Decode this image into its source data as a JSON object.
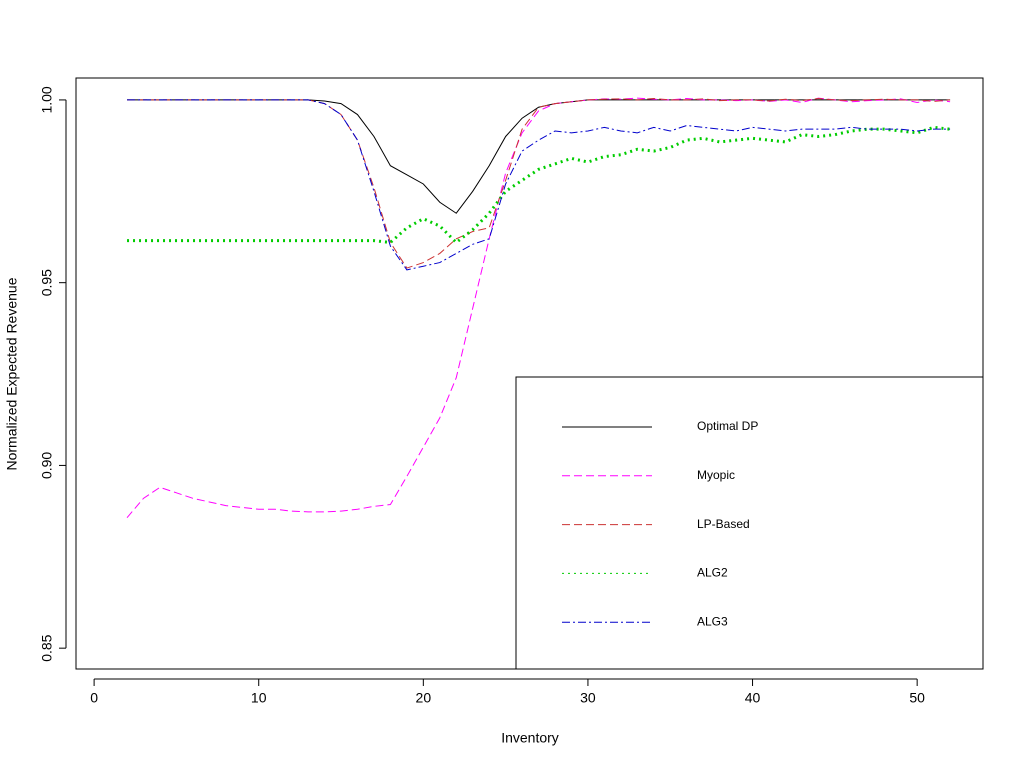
{
  "chart_data": {
    "type": "line",
    "xlabel": "Inventory",
    "ylabel": "Normalized Expected Revenue",
    "x": [
      2,
      3,
      4,
      5,
      6,
      7,
      8,
      9,
      10,
      11,
      12,
      13,
      14,
      15,
      16,
      17,
      18,
      19,
      20,
      21,
      22,
      23,
      24,
      25,
      26,
      27,
      28,
      29,
      30,
      31,
      32,
      33,
      34,
      35,
      36,
      37,
      38,
      39,
      40,
      41,
      42,
      43,
      44,
      45,
      46,
      47,
      48,
      49,
      50,
      51,
      52
    ],
    "xlim": [
      -1.1,
      54
    ],
    "xticks": [
      0,
      10,
      20,
      30,
      40,
      50
    ],
    "ylim": [
      0.8443,
      1.006
    ],
    "yticks": [
      0.85,
      {
        "value": 0.9,
        "label": "0.90"
      },
      0.95,
      {
        "value": 1,
        "label": "1.00"
      }
    ],
    "legend": "bottomright",
    "series": [
      {
        "name": "Optimal DP",
        "color": "#000000",
        "dash": "solid",
        "width": 1,
        "values": [
          1,
          1,
          1,
          1,
          1,
          1,
          1,
          1,
          1,
          1,
          1,
          1,
          0.9997,
          0.999,
          0.996,
          0.99,
          0.982,
          0.9795,
          0.977,
          0.972,
          0.969,
          0.975,
          0.982,
          0.99,
          0.995,
          0.998,
          0.999,
          0.9995,
          1,
          1,
          1,
          1,
          1,
          1,
          1,
          1,
          1,
          1,
          1,
          1,
          1,
          1,
          1,
          1,
          1,
          1,
          1,
          1,
          1,
          1,
          1
        ]
      },
      {
        "name": "Myopic",
        "color": "#ff00ff",
        "dash": "dashed",
        "width": 1,
        "values": [
          0.8857,
          0.891,
          0.894,
          0.8925,
          0.891,
          0.89,
          0.889,
          0.8885,
          0.888,
          0.888,
          0.8875,
          0.8873,
          0.8873,
          0.8875,
          0.888,
          0.8888,
          0.8893,
          0.897,
          0.905,
          0.913,
          0.924,
          0.943,
          0.962,
          0.98,
          0.991,
          0.997,
          0.999,
          0.9995,
          1,
          1.0003,
          1.0002,
          1.0005,
          1.0002,
          1,
          1.0004,
          1,
          1,
          0.9998,
          1,
          0.9996,
          1,
          0.9993,
          1.0005,
          1,
          0.9995,
          0.9998,
          1,
          1.0003,
          0.9993,
          1,
          0.9995
        ]
      },
      {
        "name": "LP-Based",
        "color": "#cc3333",
        "dash": "dashed",
        "width": 1,
        "values": [
          1,
          1,
          1,
          1,
          1,
          1,
          1,
          1,
          1,
          1,
          1,
          1,
          0.999,
          0.996,
          0.989,
          0.976,
          0.961,
          0.954,
          0.9555,
          0.958,
          0.962,
          0.964,
          0.965,
          0.978,
          0.992,
          0.998,
          0.999,
          0.9995,
          1,
          1.0002,
          1.0003,
          1,
          1.0004,
          1,
          1,
          1.0003,
          0.9998,
          1,
          1,
          0.9997,
          1.0002,
          0.9998,
          1.0004,
          1,
          0.9998,
          1,
          1.0002,
          1,
          1,
          0.9996,
          1
        ]
      },
      {
        "name": "ALG2",
        "color": "#00cc00",
        "dash": "dotted",
        "width": 3,
        "values": [
          0.9615,
          0.9615,
          0.9615,
          0.9615,
          0.9615,
          0.9615,
          0.9615,
          0.9615,
          0.9615,
          0.9615,
          0.9615,
          0.9615,
          0.9615,
          0.9615,
          0.9615,
          0.9615,
          0.961,
          0.965,
          0.9675,
          0.9655,
          0.961,
          0.9645,
          0.969,
          0.975,
          0.978,
          0.981,
          0.9825,
          0.984,
          0.983,
          0.9845,
          0.985,
          0.9865,
          0.986,
          0.987,
          0.989,
          0.9895,
          0.9885,
          0.989,
          0.9895,
          0.989,
          0.9885,
          0.9905,
          0.99,
          0.9905,
          0.9915,
          0.992,
          0.992,
          0.9915,
          0.991,
          0.9925,
          0.992
        ]
      },
      {
        "name": "ALG3",
        "color": "#0000cc",
        "dash": "dotdash",
        "width": 1,
        "values": [
          1,
          1,
          1,
          1,
          1,
          1,
          1,
          1,
          1,
          1,
          1,
          1,
          0.999,
          0.996,
          0.989,
          0.975,
          0.96,
          0.9535,
          0.9545,
          0.9555,
          0.958,
          0.9605,
          0.962,
          0.977,
          0.986,
          0.989,
          0.9915,
          0.991,
          0.9915,
          0.9925,
          0.9915,
          0.991,
          0.9925,
          0.9915,
          0.993,
          0.9925,
          0.992,
          0.9915,
          0.9925,
          0.992,
          0.9915,
          0.992,
          0.992,
          0.992,
          0.9925,
          0.992,
          0.992,
          0.992,
          0.9915,
          0.992,
          0.992
        ]
      }
    ]
  }
}
